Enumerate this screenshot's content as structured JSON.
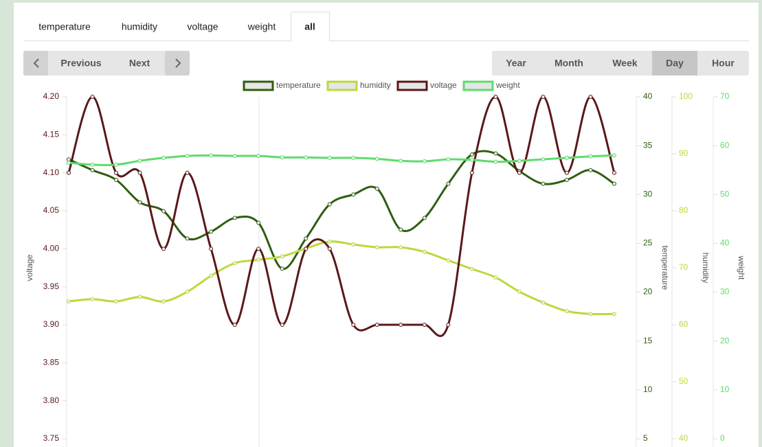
{
  "tabs": [
    "temperature",
    "humidity",
    "voltage",
    "weight",
    "all"
  ],
  "active_tab": 4,
  "nav": {
    "previous": "Previous",
    "next": "Next"
  },
  "ranges": [
    "Year",
    "Month",
    "Week",
    "Day",
    "Hour"
  ],
  "active_range": 3,
  "chart_data": {
    "type": "line",
    "axes": [
      {
        "label": "voltage",
        "lim": [
          3.75,
          4.2
        ],
        "ticks": [
          {
            "value": 4.2,
            "label": "4.20"
          },
          4.15,
          {
            "value": 4.1,
            "label": "4.10"
          },
          4.05,
          {
            "value": 4.0,
            "label": "4.00"
          },
          3.95,
          {
            "value": 3.9,
            "label": "3.90"
          },
          3.85,
          {
            "value": 3.8,
            "label": "3.80"
          },
          3.75
        ]
      },
      {
        "label": "temperature",
        "lim": [
          5,
          40
        ],
        "ticks": [
          40,
          35,
          30,
          25,
          20,
          15,
          10,
          5
        ]
      },
      {
        "label": "humidity",
        "lim": [
          40,
          100
        ],
        "ticks": [
          100,
          90,
          80,
          70,
          60,
          50,
          40
        ]
      },
      {
        "label": "weight",
        "lim": [
          0,
          70
        ],
        "ticks": [
          70,
          60,
          50,
          40,
          30,
          20,
          10,
          0
        ]
      }
    ],
    "series": [
      {
        "name": "temperature",
        "color": "#2f5d10",
        "axis": 1,
        "values": [
          33.6,
          32.5,
          31.5,
          29.2,
          28.3,
          25.5,
          26.2,
          27.6,
          27.1,
          22.4,
          25.5,
          29.0,
          30.0,
          30.6,
          26.4,
          27.6,
          31.1,
          34.1,
          34.2,
          32.4,
          31.1,
          31.5,
          32.5,
          31.1
        ]
      },
      {
        "name": "humidity",
        "color": "#b8db3a",
        "axis": 2,
        "values": [
          64.1,
          64.5,
          64.1,
          64.9,
          64.1,
          65.8,
          68.6,
          70.8,
          71.4,
          72.0,
          73.4,
          74.6,
          74.1,
          73.6,
          73.6,
          72.8,
          71.3,
          69.8,
          68.3,
          65.8,
          63.9,
          62.4,
          61.9,
          61.9
        ]
      },
      {
        "name": "voltage",
        "color": "#5a1818",
        "axis": 0,
        "values": [
          4.1,
          4.2,
          4.1,
          4.1,
          4.0,
          4.1,
          4.0,
          3.9,
          4.0,
          3.9,
          4.0,
          4.0,
          3.9,
          3.9,
          3.9,
          3.9,
          3.9,
          4.1,
          4.2,
          4.1,
          4.2,
          4.1,
          4.2,
          4.1
        ]
      },
      {
        "name": "weight",
        "color": "#5ddc6c",
        "axis": 3,
        "values": [
          56.5,
          56.1,
          56.1,
          56.9,
          57.5,
          57.9,
          58.0,
          57.9,
          57.9,
          57.6,
          57.6,
          57.5,
          57.5,
          57.3,
          56.9,
          56.8,
          57.2,
          57.1,
          56.7,
          56.9,
          57.2,
          57.5,
          57.8,
          58.0
        ]
      }
    ]
  }
}
